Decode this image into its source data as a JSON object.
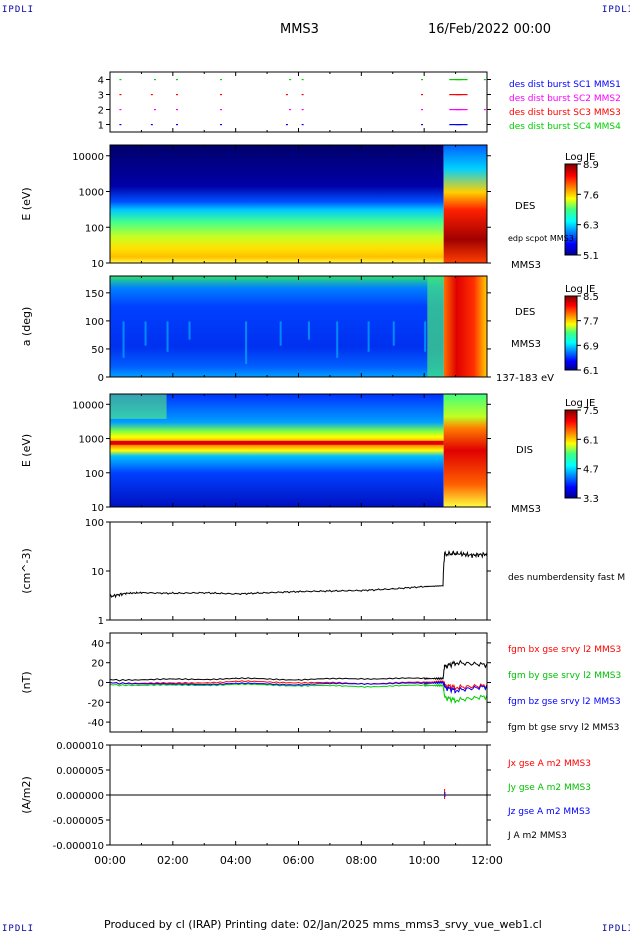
{
  "corners": {
    "tl": "IPDLI",
    "tr": "IPDLI",
    "bl": "IPDLI",
    "br": "IPDLI"
  },
  "header": {
    "spacecraft": "MMS3",
    "date": "16/Feb/2022 00:00"
  },
  "footer": {
    "text": "Produced by cl (IRAP)   Printing date: 02/Jan/2025   mms_mms3_srvy_vue_web1.cl"
  },
  "time_axis": {
    "ticks": [
      "00:00",
      "02:00",
      "04:00",
      "06:00",
      "08:00",
      "10:00",
      "12:00"
    ]
  },
  "colors": {
    "blue": "#0000ff",
    "magenta": "#ff00ff",
    "red": "#ff0000",
    "green": "#00d000",
    "black": "#000000"
  },
  "chart_data": [
    {
      "type": "scatter",
      "title": "",
      "ylim": [
        0.5,
        4.5
      ],
      "yticks": [
        "1",
        "2",
        "3",
        "4"
      ],
      "legend": [
        "des dist burst SC1 MMS1",
        "des dist burst SC2 MMS2",
        "des dist burst SC3 MMS3",
        "des dist burst SC4 MMS4"
      ],
      "legend_colors": [
        "#0000ff",
        "#ff00ff",
        "#ff0000",
        "#00d000"
      ]
    },
    {
      "type": "heatmap",
      "ylabel": "E (eV)",
      "yscale": "log",
      "ylim": [
        10,
        20000
      ],
      "yticks": [
        "10",
        "100",
        "1000",
        "10000"
      ],
      "labels": [
        "DES",
        "edp scpot MMS3",
        "MMS3"
      ],
      "colorbar": {
        "title": "Log JE",
        "ticks": [
          "8.9",
          "7.6",
          "6.3",
          "5.1"
        ]
      }
    },
    {
      "type": "heatmap",
      "ylabel": "a (deg)",
      "ylim": [
        0,
        180
      ],
      "yticks": [
        "0",
        "50",
        "100",
        "150"
      ],
      "labels": [
        "DES",
        "MMS3",
        "137-183 eV"
      ],
      "colorbar": {
        "title": "Log JE",
        "ticks": [
          "8.5",
          "7.7",
          "6.9",
          "6.1"
        ]
      }
    },
    {
      "type": "heatmap",
      "ylabel": "E (eV)",
      "yscale": "log",
      "ylim": [
        10,
        20000
      ],
      "yticks": [
        "10",
        "100",
        "1000",
        "10000"
      ],
      "labels": [
        "DIS",
        "MMS3"
      ],
      "colorbar": {
        "title": "Log JE",
        "ticks": [
          "7.5",
          "6.1",
          "4.7",
          "3.3"
        ]
      }
    },
    {
      "type": "line",
      "ylabel": "(cm^-3)",
      "yscale": "log",
      "ylim": [
        1,
        100
      ],
      "yticks": [
        "1",
        "10",
        "100"
      ],
      "series": [
        {
          "name": "des numberdensity fast M",
          "x_hours": [
            0,
            0.5,
            1,
            2,
            3,
            4,
            5,
            6,
            7,
            8,
            9,
            10,
            10.6,
            10.65,
            11,
            11.5,
            12
          ],
          "values": [
            3.0,
            3.5,
            3.6,
            3.5,
            3.6,
            3.4,
            3.6,
            3.8,
            3.9,
            4.0,
            4.3,
            4.8,
            5.0,
            22,
            23,
            21,
            22
          ]
        }
      ]
    },
    {
      "type": "line",
      "ylabel": "(nT)",
      "ylim": [
        -50,
        50
      ],
      "yticks": [
        "-40",
        "-20",
        "0",
        "20",
        "40"
      ],
      "series": [
        {
          "name": "fgm bx gse srvy l2 MMS3",
          "color": "#ff0000",
          "x_hours": [
            0,
            2,
            4,
            6,
            8,
            10,
            10.6,
            10.65,
            11,
            12
          ],
          "values": [
            0,
            -1,
            1,
            0,
            -1,
            0,
            1,
            -3,
            -5,
            -3
          ]
        },
        {
          "name": "fgm by gse srvy l2 MMS3",
          "color": "#00d000",
          "x_hours": [
            0,
            2,
            4,
            6,
            8,
            10,
            10.6,
            10.65,
            11,
            12
          ],
          "values": [
            -2,
            -3,
            -2,
            -3,
            -4,
            -3,
            -3,
            -15,
            -18,
            -14
          ]
        },
        {
          "name": "fgm bz gse srvy l2 MMS3",
          "color": "#0000ff",
          "x_hours": [
            0,
            2,
            4,
            6,
            8,
            10,
            10.6,
            10.65,
            11,
            12
          ],
          "values": [
            0,
            -2,
            -1,
            -2,
            -1,
            -1,
            0,
            -5,
            -8,
            -4
          ]
        },
        {
          "name": "fgm bt gse srvy l2 MMS3",
          "color": "#000000",
          "x_hours": [
            0,
            2,
            4,
            6,
            8,
            10,
            10.6,
            10.65,
            11,
            12
          ],
          "values": [
            3,
            3,
            4,
            3,
            4,
            4,
            4,
            16,
            20,
            18
          ]
        }
      ]
    },
    {
      "type": "line",
      "ylabel": "(A/m2)",
      "ylim": [
        -1e-05,
        1e-05
      ],
      "yticks": [
        "-0.000010",
        "-0.000005",
        "0.000000",
        "0.000005",
        "0.000010"
      ],
      "series": [
        {
          "name": "Jx gse A m2 MMS3",
          "color": "#ff0000"
        },
        {
          "name": "Jy gse A m2 MMS3",
          "color": "#00d000"
        },
        {
          "name": "Jz gse A m2 MMS3",
          "color": "#0000ff"
        },
        {
          "name": "J A m2 MMS3",
          "color": "#000000"
        }
      ]
    }
  ]
}
